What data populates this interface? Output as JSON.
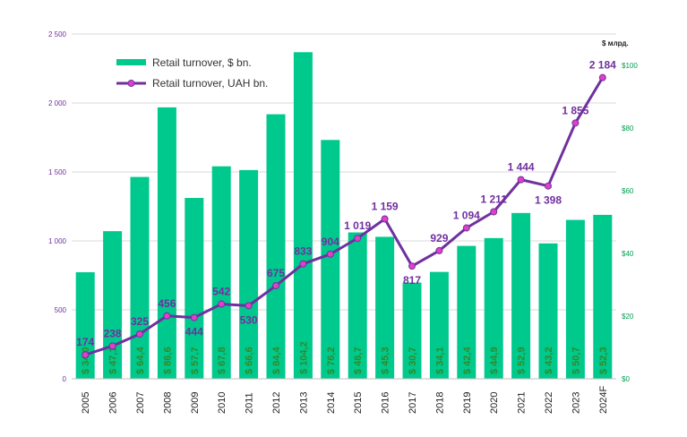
{
  "chart_data": {
    "type": "bar+line",
    "categories": [
      "2005",
      "2006",
      "2007",
      "2008",
      "2009",
      "2010",
      "2011",
      "2012",
      "2013",
      "2014",
      "2015",
      "2016",
      "2017",
      "2018",
      "2019",
      "2020",
      "2021",
      "2022",
      "2023",
      "2024F"
    ],
    "series": [
      {
        "name": "Retail turnover, $ bn.",
        "type": "bar",
        "axis": "right",
        "color": "#00c98d",
        "values": [
          34.0,
          47.1,
          64.4,
          86.6,
          57.7,
          67.8,
          66.6,
          84.4,
          104.2,
          76.2,
          46.7,
          45.3,
          30.7,
          34.1,
          42.4,
          44.9,
          52.9,
          43.2,
          50.7,
          52.3
        ],
        "labels": [
          "$ 34,0",
          "$ 47,1",
          "$ 64,4",
          "$ 86,6",
          "$ 57,7",
          "$ 67,8",
          "$ 66,6",
          "$ 84,4",
          "$ 104,2",
          "$ 76,2",
          "$ 46,7",
          "$ 45,3",
          "$ 30,7",
          "$ 34,1",
          "$ 42,4",
          "$ 44,9",
          "$ 52,9",
          "$ 43,2",
          "$ 50,7",
          "$ 52,3"
        ]
      },
      {
        "name": "Retail turnover, UAH bn.",
        "type": "line",
        "axis": "left",
        "color": "#7030a0",
        "marker_color": "#e040c8",
        "values": [
          174,
          238,
          325,
          456,
          444,
          542,
          530,
          675,
          833,
          904,
          1019,
          1159,
          817,
          929,
          1094,
          1211,
          1444,
          1398,
          1855,
          2184
        ],
        "labels": [
          "174",
          "238",
          "325",
          "456",
          "444",
          "542",
          "530",
          "675",
          "833",
          "904",
          "1 019",
          "1 159",
          "817",
          "929",
          "1 094",
          "1 211",
          "1 444",
          "1 398",
          "1 855",
          "2 184"
        ]
      }
    ],
    "left_axis": {
      "range": [
        0,
        2500
      ],
      "ticks": [
        0,
        500,
        1000,
        1500,
        2000,
        2500
      ],
      "tick_labels": [
        "0",
        "500",
        "1 000",
        "1 500",
        "2 000",
        "2 500"
      ],
      "color": "#7030a0"
    },
    "right_axis": {
      "range": [
        0,
        110
      ],
      "ticks": [
        0,
        20,
        40,
        60,
        80,
        100
      ],
      "tick_labels": [
        "$0",
        "$20",
        "$40",
        "$60",
        "$80",
        "$100"
      ],
      "unit_label": "$ млрд.",
      "color": "#00a050"
    },
    "grid": true,
    "legend_position": "top-left"
  }
}
